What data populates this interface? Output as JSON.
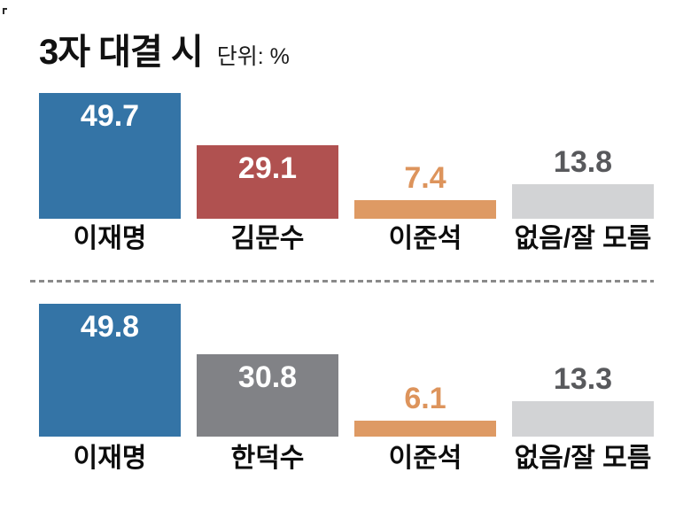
{
  "header": {
    "title": "3자 대결 시",
    "unit_label": "단위: %"
  },
  "colors": {
    "bar_blue": "#3474a6",
    "bar_red": "#b05150",
    "bar_orange": "#de9a64",
    "bar_light_gray": "#d2d3d5",
    "bar_mid_gray": "#818286",
    "value_inside": "#ffffff",
    "value_orange": "#dd945c",
    "value_gray": "#58595c",
    "divider_gray": "#8a8a8a"
  },
  "chart_data": [
    {
      "type": "bar",
      "title": "3자 대결 시",
      "unit": "%",
      "categories": [
        "이재명",
        "김문수",
        "이준석",
        "없음/잘 모름"
      ],
      "values": [
        49.7,
        29.1,
        7.4,
        13.8
      ],
      "bar_colors": [
        "#3474a6",
        "#b05150",
        "#de9a64",
        "#d2d3d5"
      ],
      "value_label_colors": [
        "#ffffff",
        "#ffffff",
        "#dd945c",
        "#58595c"
      ],
      "value_label_position": [
        "inside",
        "inside",
        "above",
        "above"
      ],
      "ylim": [
        0,
        50
      ],
      "grid": false,
      "legend": "none"
    },
    {
      "type": "bar",
      "title": "3자 대결 시",
      "unit": "%",
      "categories": [
        "이재명",
        "한덕수",
        "이준석",
        "없음/잘 모름"
      ],
      "values": [
        49.8,
        30.8,
        6.1,
        13.3
      ],
      "bar_colors": [
        "#3474a6",
        "#818286",
        "#de9a64",
        "#d2d3d5"
      ],
      "value_label_colors": [
        "#ffffff",
        "#ffffff",
        "#dd945c",
        "#58595c"
      ],
      "value_label_position": [
        "inside",
        "inside",
        "above",
        "above"
      ],
      "ylim": [
        0,
        50
      ],
      "grid": false,
      "legend": "none"
    }
  ]
}
